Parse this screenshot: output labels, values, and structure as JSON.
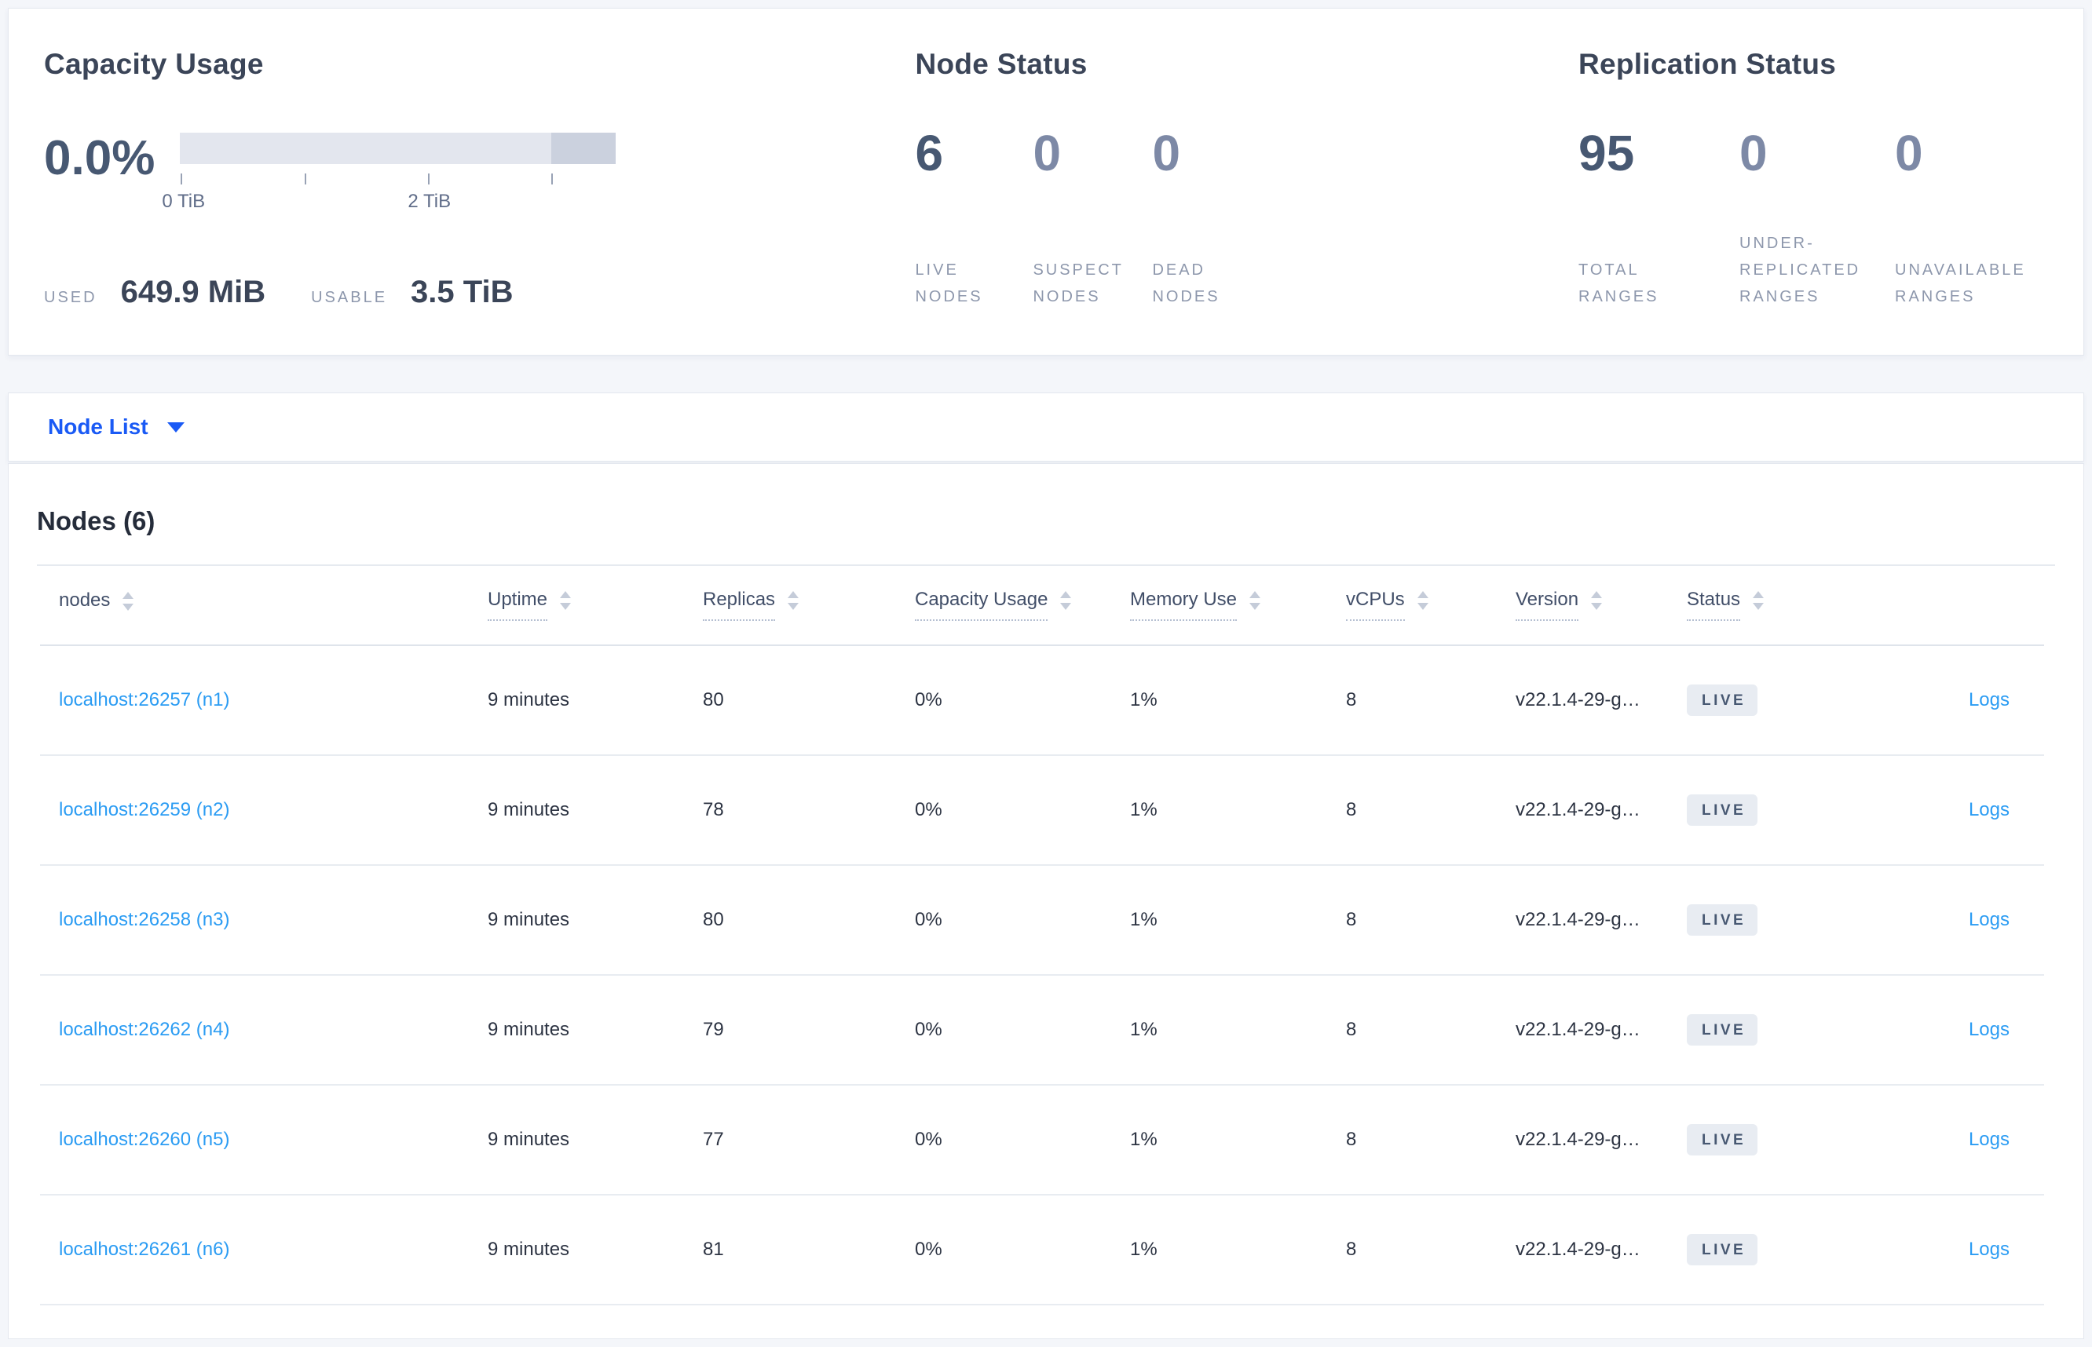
{
  "colors": {
    "link_blue": "#2b9cf3",
    "dropdown_blue": "#1a5af5",
    "badge_bg": "#e8ecf2",
    "badge_text": "#475872",
    "primary_number": "#475872",
    "muted_number": "#7d89a6"
  },
  "summary": {
    "capacity": {
      "title": "Capacity Usage",
      "percent": "0.0%",
      "axis_tick_0": "0 TiB",
      "axis_tick_2": "2 TiB",
      "used_label": "USED",
      "used_value": "649.9 MiB",
      "usable_label": "USABLE",
      "usable_value": "3.5 TiB"
    },
    "node_status": {
      "title": "Node Status",
      "metrics": [
        {
          "value": "6",
          "label": "LIVE\nNODES"
        },
        {
          "value": "0",
          "label": "SUSPECT\nNODES"
        },
        {
          "value": "0",
          "label": "DEAD\nNODES"
        }
      ]
    },
    "replication": {
      "title": "Replication Status",
      "metrics": [
        {
          "value": "95",
          "label": "TOTAL\nRANGES"
        },
        {
          "value": "0",
          "label": "UNDER-\nREPLICATED\nRANGES"
        },
        {
          "value": "0",
          "label": "UNAVAILABLE\nRANGES"
        }
      ]
    }
  },
  "view_selector": {
    "label": "Node List"
  },
  "nodes": {
    "title": "Nodes (6)",
    "columns": [
      "nodes",
      "Uptime",
      "Replicas",
      "Capacity Usage",
      "Memory Use",
      "vCPUs",
      "Version",
      "Status"
    ],
    "rows": [
      {
        "name": "localhost:26257 (n1)",
        "uptime": "9 minutes",
        "replicas": "80",
        "capacity": "0%",
        "memory": "1%",
        "vcpus": "8",
        "version": "v22.1.4-29-g…",
        "status": "LIVE",
        "logs_label": "Logs"
      },
      {
        "name": "localhost:26259 (n2)",
        "uptime": "9 minutes",
        "replicas": "78",
        "capacity": "0%",
        "memory": "1%",
        "vcpus": "8",
        "version": "v22.1.4-29-g…",
        "status": "LIVE",
        "logs_label": "Logs"
      },
      {
        "name": "localhost:26258 (n3)",
        "uptime": "9 minutes",
        "replicas": "80",
        "capacity": "0%",
        "memory": "1%",
        "vcpus": "8",
        "version": "v22.1.4-29-g…",
        "status": "LIVE",
        "logs_label": "Logs"
      },
      {
        "name": "localhost:26262 (n4)",
        "uptime": "9 minutes",
        "replicas": "79",
        "capacity": "0%",
        "memory": "1%",
        "vcpus": "8",
        "version": "v22.1.4-29-g…",
        "status": "LIVE",
        "logs_label": "Logs"
      },
      {
        "name": "localhost:26260 (n5)",
        "uptime": "9 minutes",
        "replicas": "77",
        "capacity": "0%",
        "memory": "1%",
        "vcpus": "8",
        "version": "v22.1.4-29-g…",
        "status": "LIVE",
        "logs_label": "Logs"
      },
      {
        "name": "localhost:26261 (n6)",
        "uptime": "9 minutes",
        "replicas": "81",
        "capacity": "0%",
        "memory": "1%",
        "vcpus": "8",
        "version": "v22.1.4-29-g…",
        "status": "LIVE",
        "logs_label": "Logs"
      }
    ]
  }
}
